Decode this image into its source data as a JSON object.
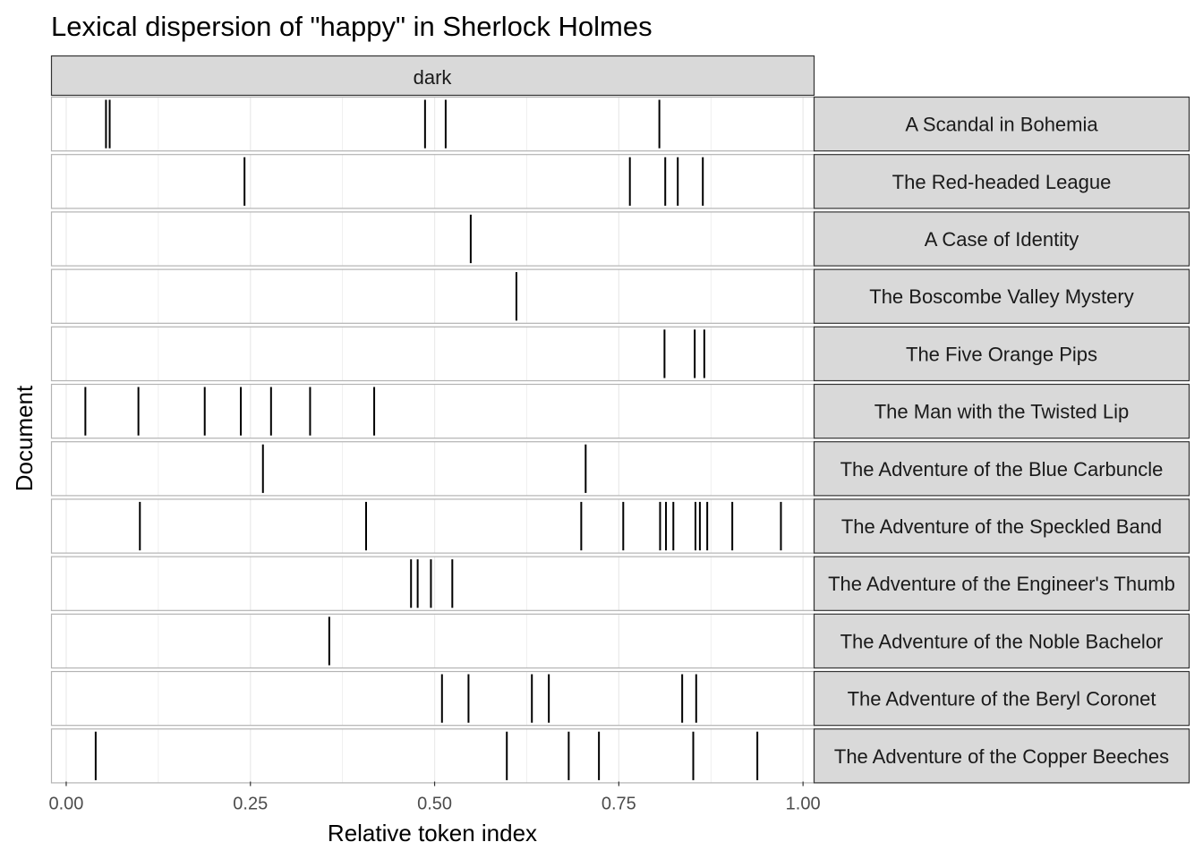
{
  "chart_data": {
    "type": "dispersion",
    "title": "Lexical dispersion of \"happy\" in Sherlock Holmes",
    "xlabel": "Relative token index",
    "ylabel": "Document",
    "xlim": [
      -0.02,
      1.015
    ],
    "x_ticks": [
      "0.00",
      "0.25",
      "0.50",
      "0.75",
      "1.00"
    ],
    "x_tick_values": [
      0,
      0.25,
      0.5,
      0.75,
      1.0
    ],
    "column_facet": "dark",
    "grid": true,
    "colors": {
      "strip_fill": "#d9d9d9",
      "strip_border": "#333333",
      "panel_border": "#b3b3b3",
      "grid": "#ebebeb",
      "mark": "#000000",
      "tick_label": "#4d4d4d"
    },
    "documents": [
      {
        "name": "A Scandal in Bohemia",
        "x": [
          0.054,
          0.059,
          0.487,
          0.515,
          0.805
        ]
      },
      {
        "name": "The Red-headed League",
        "x": [
          0.242,
          0.765,
          0.813,
          0.83,
          0.864
        ]
      },
      {
        "name": "A Case of Identity",
        "x": [
          0.549
        ]
      },
      {
        "name": "The Boscombe Valley Mystery",
        "x": [
          0.611
        ]
      },
      {
        "name": "The Five Orange Pips",
        "x": [
          0.812,
          0.853,
          0.866
        ]
      },
      {
        "name": "The Man with the Twisted Lip",
        "x": [
          0.026,
          0.098,
          0.188,
          0.237,
          0.278,
          0.331,
          0.418
        ]
      },
      {
        "name": "The Adventure of the Blue Carbuncle",
        "x": [
          0.267,
          0.705
        ]
      },
      {
        "name": "The Adventure of the Speckled Band",
        "x": [
          0.1,
          0.407,
          0.699,
          0.756,
          0.806,
          0.814,
          0.824,
          0.854,
          0.86,
          0.87,
          0.904,
          0.97
        ]
      },
      {
        "name": "The Adventure of the Engineer's Thumb",
        "x": [
          0.468,
          0.477,
          0.495,
          0.524
        ]
      },
      {
        "name": "The Adventure of the Noble Bachelor",
        "x": [
          0.357
        ]
      },
      {
        "name": "The Adventure of the Beryl Coronet",
        "x": [
          0.51,
          0.546,
          0.632,
          0.655,
          0.836,
          0.855
        ]
      },
      {
        "name": "The Adventure of the Copper Beeches",
        "x": [
          0.04,
          0.598,
          0.682,
          0.723,
          0.851,
          0.938
        ]
      }
    ]
  }
}
